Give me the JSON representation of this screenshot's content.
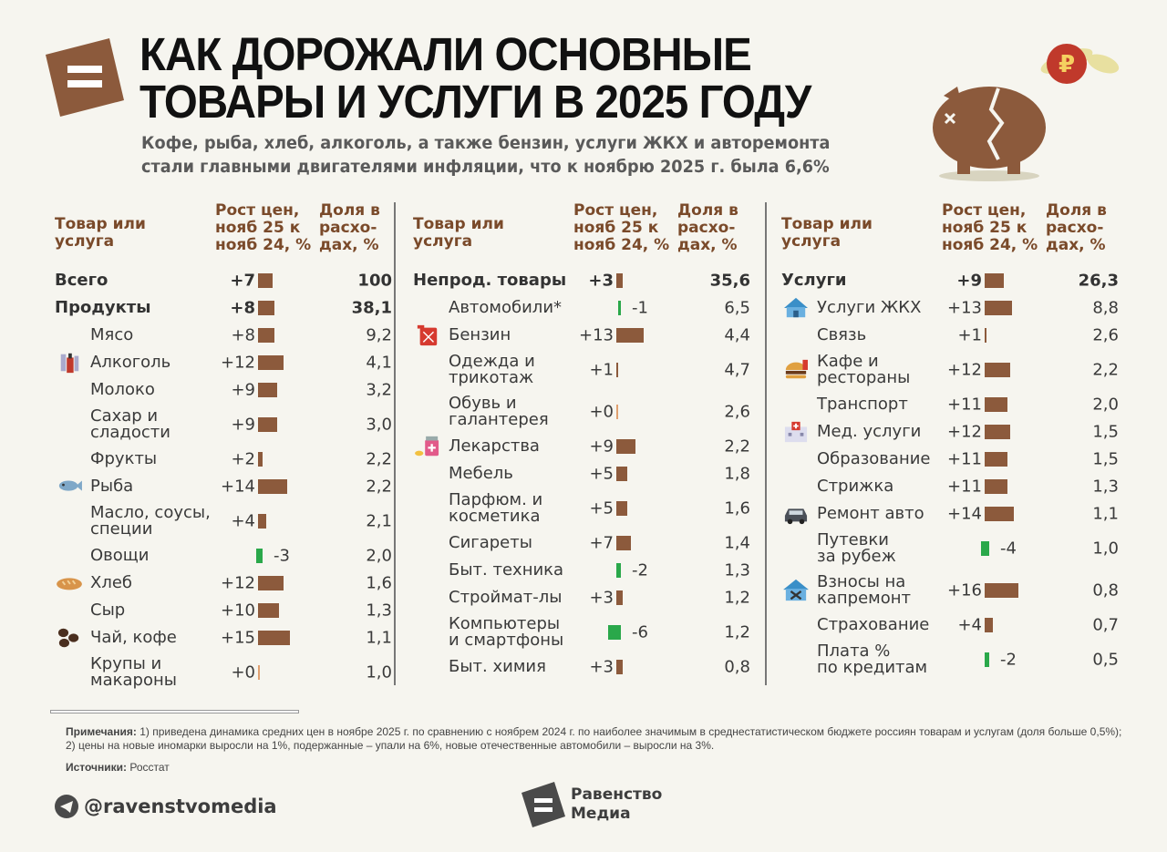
{
  "title_lines": [
    "КАК ДОРОЖАЛИ ОСНОВНЫЕ",
    "ТОВАРЫ И УСЛУГИ В 2025 ГОДУ"
  ],
  "subtitle_lines": [
    "Кофе, рыба, хлеб, алкоголь, а также бензин, услуги ЖКХ и авторемонта",
    "стали главными двигателями инфляции, что к ноябрю 2025 г. была 6,6%"
  ],
  "header_lines": {
    "item": [
      "Товар или",
      "услуга"
    ],
    "growth": [
      "Рост цен,",
      "нояб 25 к",
      "нояб 24, %"
    ],
    "share": [
      "Доля в",
      "расхо-",
      "дах, %"
    ]
  },
  "colors": {
    "positive_bar": "#8c5a3c",
    "negative_bar": "#2aa84a",
    "header": "#7a4a2a",
    "logo": "#8c5a3c"
  },
  "chart_data": {
    "type": "table",
    "columns": [
      {
        "items": [
          {
            "name": "Всего",
            "growth": "+7",
            "value": 7,
            "share": "100",
            "level": "total"
          },
          {
            "name": "Продукты",
            "growth": "+8",
            "value": 8,
            "share": "38,1",
            "level": "total"
          },
          {
            "name": "Мясо",
            "growth": "+8",
            "value": 8,
            "share": "9,2"
          },
          {
            "name": "Алкоголь",
            "growth": "+12",
            "value": 12,
            "share": "4,1",
            "icon": "alcohol-bottles-icon"
          },
          {
            "name": "Молоко",
            "growth": "+9",
            "value": 9,
            "share": "3,2"
          },
          {
            "name": "Сахар и\nсладости",
            "growth": "+9",
            "value": 9,
            "share": "3,0"
          },
          {
            "name": "Фрукты",
            "growth": "+2",
            "value": 2,
            "share": "2,2"
          },
          {
            "name": "Рыба",
            "growth": "+14",
            "value": 14,
            "share": "2,2",
            "icon": "fish-icon"
          },
          {
            "name": "Масло, соусы,\nспеции",
            "growth": "+4",
            "value": 4,
            "share": "2,1"
          },
          {
            "name": "Овощи",
            "growth": "-3",
            "value": -3,
            "share": "2,0"
          },
          {
            "name": "Хлеб",
            "growth": "+12",
            "value": 12,
            "share": "1,6",
            "icon": "bread-icon"
          },
          {
            "name": "Сыр",
            "growth": "+10",
            "value": 10,
            "share": "1,3"
          },
          {
            "name": "Чай, кофе",
            "growth": "+15",
            "value": 15,
            "share": "1,1",
            "icon": "coffee-beans-icon"
          },
          {
            "name": "Крупы и\nмакароны",
            "growth": "+0",
            "value": 0,
            "share": "1,0"
          }
        ]
      },
      {
        "items": [
          {
            "name": "Непрод. товары",
            "growth": "+3",
            "value": 3,
            "share": "35,6",
            "level": "total"
          },
          {
            "name": "Автомобили*",
            "growth": "-1",
            "value": -1,
            "share": "6,5"
          },
          {
            "name": "Бензин",
            "growth": "+13",
            "value": 13,
            "share": "4,4",
            "icon": "fuel-can-icon"
          },
          {
            "name": "Одежда и\nтрикотаж",
            "growth": "+1",
            "value": 1,
            "share": "4,7"
          },
          {
            "name": "Обувь и\nгалантерея",
            "growth": "+0",
            "value": 0,
            "share": "2,6"
          },
          {
            "name": "Лекарства",
            "growth": "+9",
            "value": 9,
            "share": "2,2",
            "icon": "medicine-icon"
          },
          {
            "name": "Мебель",
            "growth": "+5",
            "value": 5,
            "share": "1,8"
          },
          {
            "name": "Парфюм. и\nкосметика",
            "growth": "+5",
            "value": 5,
            "share": "1,6"
          },
          {
            "name": "Сигареты",
            "growth": "+7",
            "value": 7,
            "share": "1,4"
          },
          {
            "name": "Быт. техника",
            "growth": "-2",
            "value": -2,
            "share": "1,3"
          },
          {
            "name": "Строймат-лы",
            "growth": "+3",
            "value": 3,
            "share": "1,2"
          },
          {
            "name": "Компьютеры\nи смартфоны",
            "growth": "-6",
            "value": -6,
            "share": "1,2"
          },
          {
            "name": "Быт. химия",
            "growth": "+3",
            "value": 3,
            "share": "0,8"
          }
        ]
      },
      {
        "items": [
          {
            "name": "Услуги",
            "growth": "+9",
            "value": 9,
            "share": "26,3",
            "level": "total"
          },
          {
            "name": "Услуги ЖКХ",
            "growth": "+13",
            "value": 13,
            "share": "8,8",
            "icon": "house-icon"
          },
          {
            "name": "Связь",
            "growth": "+1",
            "value": 1,
            "share": "2,6"
          },
          {
            "name": "Кафе и\nрестораны",
            "growth": "+12",
            "value": 12,
            "share": "2,2",
            "icon": "burger-icon"
          },
          {
            "name": "Транспорт",
            "growth": "+11",
            "value": 11,
            "share": "2,0"
          },
          {
            "name": "Мед. услуги",
            "growth": "+12",
            "value": 12,
            "share": "1,5",
            "icon": "hospital-icon"
          },
          {
            "name": "Образование",
            "growth": "+11",
            "value": 11,
            "share": "1,5"
          },
          {
            "name": "Стрижка",
            "growth": "+11",
            "value": 11,
            "share": "1,3"
          },
          {
            "name": "Ремонт авто",
            "growth": "+14",
            "value": 14,
            "share": "1,1",
            "icon": "car-icon"
          },
          {
            "name": "Путевки\nза рубеж",
            "growth": "-4",
            "value": -4,
            "share": "1,0"
          },
          {
            "name": "Взносы на\nкапремонт",
            "growth": "+16",
            "value": 16,
            "share": "0,8",
            "icon": "repair-house-icon"
          },
          {
            "name": "Страхование",
            "growth": "+4",
            "value": 4,
            "share": "0,7"
          },
          {
            "name": "Плата %\nпо кредитам",
            "growth": "-2",
            "value": -2,
            "share": "0,5"
          }
        ]
      }
    ]
  },
  "notes": {
    "label": "Примечания:",
    "text": "1) приведена динамика средних цен в ноябре 2025 г. по сравнению с ноябрем 2024 г. по наиболее значимым в среднестатистическом бюджете россиян товарам и услугам (доля больше 0,5%); 2) цены на новые иномарки выросли на 1%, подержанные – упали на 6%, новые отечественные автомобили – выросли на 3%."
  },
  "sources": {
    "label": "Источники:",
    "text": "Росстат"
  },
  "footer": {
    "telegram": "@ravenstvomedia",
    "brand_lines": [
      "Равенство",
      "Медиа"
    ]
  },
  "pig_coin_symbol": "₽"
}
